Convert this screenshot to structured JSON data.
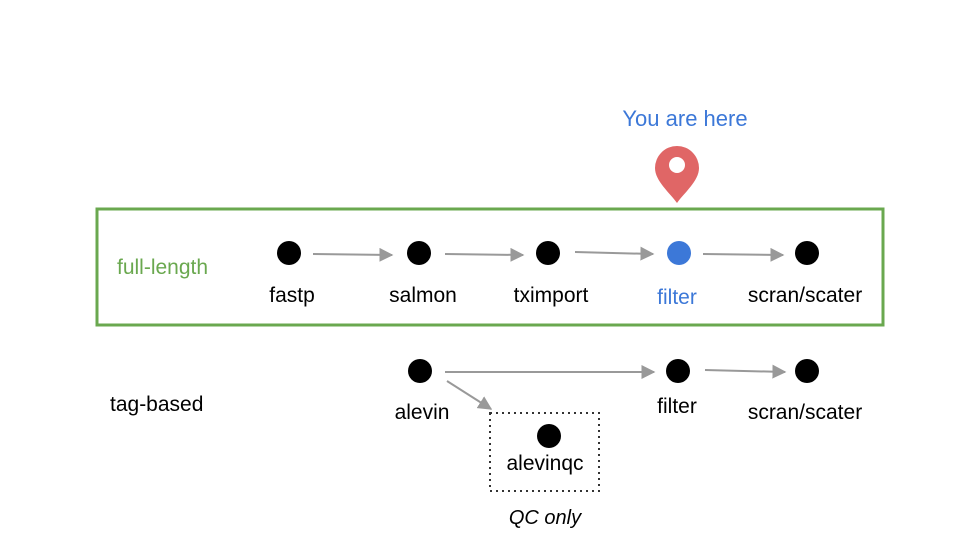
{
  "marker": {
    "caption": "You are here",
    "pin_color": "#e06666",
    "caption_color": "#3c78d8",
    "icon": "location-pin-icon"
  },
  "full_length": {
    "label": "full-length",
    "color": "#6aa84f",
    "steps": [
      {
        "label": "fastp"
      },
      {
        "label": "salmon"
      },
      {
        "label": "tximport"
      },
      {
        "label": "filter",
        "current": true
      },
      {
        "label": "scran/scater"
      }
    ]
  },
  "tag_based": {
    "label": "tag-based",
    "steps": [
      {
        "label": "alevin"
      },
      {
        "label": "filter"
      },
      {
        "label": "scran/scater"
      }
    ],
    "qc_branch": {
      "label": "alevinqc",
      "note": "QC only"
    }
  },
  "colors": {
    "node": "#000000",
    "current_node": "#3c78d8",
    "arrow": "#999999",
    "text": "#000000"
  }
}
